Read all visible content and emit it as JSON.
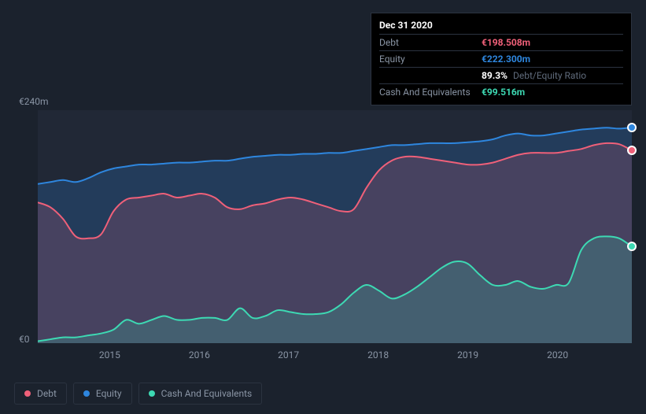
{
  "chart": {
    "type": "area",
    "background_color": "#1b222d",
    "plot_background_color": "#212836",
    "grid_color": "#2b3340",
    "label_color": "#8a95a5",
    "y_max_label": "€240m",
    "y_min_label": "€0",
    "y_max": 240,
    "y_min": 0,
    "x_labels": [
      "2015",
      "2016",
      "2017",
      "2018",
      "2019",
      "2020"
    ],
    "x_label_positions_pct": [
      12.1,
      27.2,
      42.2,
      57.3,
      72.4,
      87.5
    ],
    "series": [
      {
        "name": "Debt",
        "color": "#ef6079",
        "fill_opacity": 0.18,
        "stroke_width": 2,
        "y": [
          145,
          140,
          128,
          110,
          108,
          112,
          136,
          148,
          150,
          152,
          154,
          150,
          152,
          154,
          150,
          140,
          138,
          142,
          144,
          148,
          150,
          148,
          144,
          140,
          136,
          138,
          160,
          178,
          188,
          192,
          192,
          190,
          188,
          186,
          184,
          184,
          186,
          190,
          194,
          196,
          196,
          196,
          198,
          200,
          204,
          206,
          205,
          198.5
        ]
      },
      {
        "name": "Equity",
        "color": "#2e86de",
        "fill_opacity": 0.22,
        "stroke_width": 2,
        "y": [
          164,
          166,
          168,
          166,
          170,
          176,
          180,
          182,
          184,
          184,
          185,
          186,
          186,
          187,
          188,
          188,
          190,
          192,
          193,
          194,
          194,
          195,
          195,
          196,
          196,
          198,
          200,
          202,
          204,
          204,
          205,
          206,
          206,
          206,
          207,
          208,
          210,
          214,
          216,
          214,
          214,
          216,
          218,
          220,
          221,
          222,
          221,
          222.3
        ]
      },
      {
        "name": "Cash And Equivalents",
        "color": "#3dd9b3",
        "fill_opacity": 0.2,
        "stroke_width": 2,
        "y": [
          2,
          4,
          6,
          6,
          8,
          10,
          14,
          24,
          20,
          24,
          28,
          24,
          24,
          26,
          26,
          24,
          36,
          26,
          28,
          34,
          32,
          30,
          30,
          32,
          40,
          52,
          60,
          54,
          46,
          50,
          58,
          68,
          78,
          84,
          82,
          70,
          60,
          60,
          64,
          58,
          56,
          60,
          62,
          96,
          108,
          110,
          108,
          99.5
        ]
      }
    ],
    "end_markers": [
      {
        "color": "#2e86de",
        "y": 222.3
      },
      {
        "color": "#ef6079",
        "y": 198.5
      },
      {
        "color": "#3dd9b3",
        "y": 99.5
      }
    ]
  },
  "tooltip": {
    "date": "Dec 31 2020",
    "rows": [
      {
        "label": "Debt",
        "value": "€198.508m",
        "color": "#ef6079"
      },
      {
        "label": "Equity",
        "value": "€222.300m",
        "color": "#2e86de"
      },
      {
        "label": "",
        "value": "89.3%",
        "suffix": "Debt/Equity Ratio",
        "color": "#ffffff"
      },
      {
        "label": "Cash And Equivalents",
        "value": "€99.516m",
        "color": "#3dd9b3"
      }
    ]
  },
  "legend": {
    "items": [
      {
        "label": "Debt",
        "color": "#ef6079"
      },
      {
        "label": "Equity",
        "color": "#2e86de"
      },
      {
        "label": "Cash And Equivalents",
        "color": "#3dd9b3"
      }
    ]
  }
}
